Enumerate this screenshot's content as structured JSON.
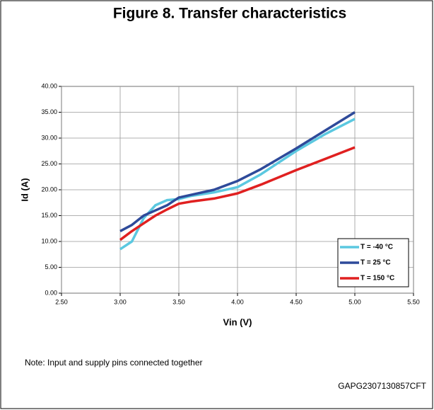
{
  "chart_data": {
    "type": "line",
    "title": "Figure 8. Transfer characteristics",
    "x_label": "Vin (V)",
    "y_label": "Id (A)",
    "note": "Note: Input and supply pins connected together",
    "code": "GAPG2307130857CFT",
    "x": [
      3.0,
      3.1,
      3.2,
      3.3,
      3.4,
      3.5,
      3.6,
      3.8,
      4.0,
      4.2,
      4.5,
      4.75,
      5.0
    ],
    "series": [
      {
        "name": "T = -40 °C",
        "color": "#5bc8e0",
        "values": [
          8.5,
          10,
          14.5,
          17,
          18,
          18.2,
          18.8,
          19.5,
          20.5,
          23,
          27.5,
          30.8,
          33.7
        ]
      },
      {
        "name": "T = 25 °C",
        "color": "#2e4a9a",
        "values": [
          12,
          13.2,
          15,
          16,
          17,
          18.5,
          19,
          20,
          21.7,
          24,
          28,
          31.5,
          35
        ]
      },
      {
        "name": "T = 150 °C",
        "color": "#e02020",
        "values": [
          10.3,
          12,
          13.5,
          15,
          16.2,
          17.3,
          17.7,
          18.3,
          19.3,
          21,
          23.8,
          26,
          28.2
        ]
      }
    ],
    "xlim": [
      2.5,
      5.5
    ],
    "xticks": [
      {
        "value": 2.5,
        "label": "2.50"
      },
      {
        "value": 3.0,
        "label": "3.00"
      },
      {
        "value": 3.5,
        "label": "3.50"
      },
      {
        "value": 4.0,
        "label": "4.00"
      },
      {
        "value": 4.5,
        "label": "4.50"
      },
      {
        "value": 5.0,
        "label": "5.00"
      },
      {
        "value": 5.5,
        "label": "5.50"
      }
    ],
    "ylim": [
      0,
      40
    ],
    "yticks": [
      {
        "value": 0,
        "label": "0.00"
      },
      {
        "value": 5,
        "label": "5.00"
      },
      {
        "value": 10,
        "label": "10.00"
      },
      {
        "value": 15,
        "label": "15.00"
      },
      {
        "value": 20,
        "label": "20.00"
      },
      {
        "value": 25,
        "label": "25.00"
      },
      {
        "value": 30,
        "label": "30.00"
      },
      {
        "value": 35,
        "label": "35.00"
      },
      {
        "value": 40,
        "label": "40.00"
      }
    ],
    "grid": true,
    "legend": "lower right"
  }
}
